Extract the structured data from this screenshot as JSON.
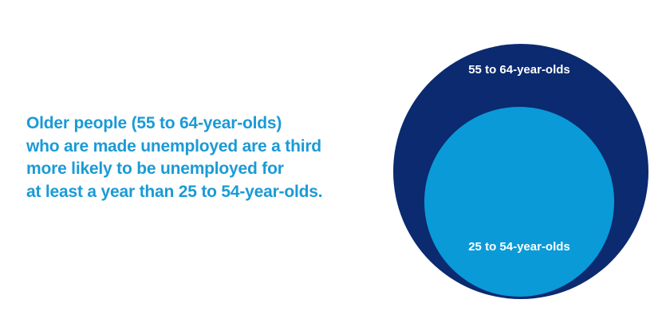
{
  "statement": {
    "lines": [
      "Older people (55 to 64-year-olds)",
      "who are made unemployed are a third",
      "more likely to be unemployed for",
      "at least a year than 25 to 54-year-olds."
    ]
  },
  "circles": {
    "outer_label": "55 to 64-year-olds",
    "inner_label": "25 to 54-year-olds"
  }
}
